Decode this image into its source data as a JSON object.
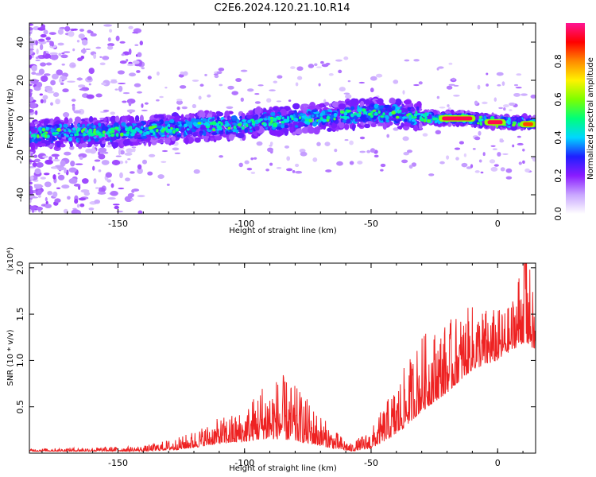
{
  "title": "C2E6.2024.120.21.10.R14",
  "chart_data": [
    {
      "type": "heatmap",
      "xlabel": "Height of straight line (km)",
      "ylabel": "Frequency (Hz)",
      "xlim": [
        -185,
        15
      ],
      "ylim": [
        -50,
        50
      ],
      "x_ticks": [
        "-150",
        "-100",
        "-50",
        "0"
      ],
      "y_ticks": [
        "40",
        "20",
        "0",
        "-20",
        "-40"
      ],
      "colorbar": {
        "label": "Normalized spectral amplitude",
        "range": [
          0,
          1
        ],
        "ticks": [
          "0.0",
          "0.2",
          "0.4",
          "0.6",
          "0.8"
        ],
        "colors": [
          "#ffffff",
          "#c9a6ff",
          "#8a1cff",
          "#1f1fff",
          "#00d7ff",
          "#00ff7a",
          "#7dff00",
          "#fff200",
          "#ff8a00",
          "#ff0000",
          "#ff1493"
        ]
      },
      "ridge": [
        {
          "x": -185,
          "y": -8
        },
        {
          "x": -150,
          "y": -7
        },
        {
          "x": -125,
          "y": -5
        },
        {
          "x": -100,
          "y": -3
        },
        {
          "x": -75,
          "y": 0
        },
        {
          "x": -50,
          "y": 3
        },
        {
          "x": -35,
          "y": 2
        },
        {
          "x": -25,
          "y": 0
        },
        {
          "x": -15,
          "y": 0
        },
        {
          "x": -5,
          "y": -1
        },
        {
          "x": 0,
          "y": -2
        },
        {
          "x": 10,
          "y": -2
        },
        {
          "x": 15,
          "y": -3
        }
      ],
      "peak_segments": [
        {
          "x_start": -22,
          "x_end": -10,
          "y": 0,
          "level": 0.95
        },
        {
          "x_start": -4,
          "x_end": 2,
          "y": -2,
          "level": 0.95
        },
        {
          "x_start": 10,
          "x_end": 14,
          "y": -3,
          "level": 0.85
        }
      ]
    },
    {
      "type": "line",
      "xlabel": "Height of straight line (km)",
      "ylabel": "SNR (10 * v/v)",
      "y_multiplier": "(x10⁴)",
      "xlim": [
        -185,
        15
      ],
      "ylim": [
        0,
        2.05
      ],
      "x_ticks": [
        "-150",
        "-100",
        "-50",
        "0"
      ],
      "y_ticks": [
        "0.5",
        "1.0",
        "1.5",
        "2.0"
      ],
      "color": "#ee2222",
      "envelope": [
        {
          "x": -185,
          "base": 0.02,
          "amp": 0.02
        },
        {
          "x": -140,
          "base": 0.02,
          "amp": 0.04
        },
        {
          "x": -125,
          "base": 0.04,
          "amp": 0.1
        },
        {
          "x": -110,
          "base": 0.1,
          "amp": 0.2
        },
        {
          "x": -100,
          "base": 0.12,
          "amp": 0.25
        },
        {
          "x": -93,
          "base": 0.15,
          "amp": 0.45
        },
        {
          "x": -85,
          "base": 0.15,
          "amp": 0.5
        },
        {
          "x": -78,
          "base": 0.12,
          "amp": 0.4
        },
        {
          "x": -65,
          "base": 0.05,
          "amp": 0.15
        },
        {
          "x": -58,
          "base": 0.02,
          "amp": 0.06
        },
        {
          "x": -50,
          "base": 0.05,
          "amp": 0.15
        },
        {
          "x": -40,
          "base": 0.2,
          "amp": 0.4
        },
        {
          "x": -30,
          "base": 0.45,
          "amp": 0.6
        },
        {
          "x": -20,
          "base": 0.65,
          "amp": 0.55
        },
        {
          "x": -10,
          "base": 0.9,
          "amp": 0.5
        },
        {
          "x": 0,
          "base": 1.0,
          "amp": 0.4
        },
        {
          "x": 5,
          "base": 1.1,
          "amp": 0.35
        },
        {
          "x": 11,
          "base": 1.2,
          "amp": 0.85
        },
        {
          "x": 15,
          "base": 1.1,
          "amp": 0.3
        }
      ]
    }
  ]
}
